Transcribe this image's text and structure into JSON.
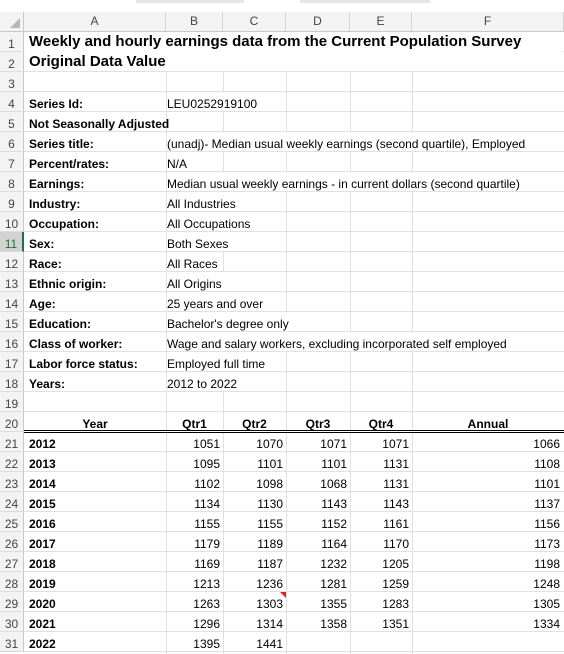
{
  "sheet": {
    "columns": [
      "A",
      "B",
      "C",
      "D",
      "E",
      "F"
    ],
    "selected_row": "11",
    "row_numbers": [
      "1",
      "2",
      "3",
      "4",
      "5",
      "6",
      "7",
      "8",
      "9",
      "10",
      "11",
      "12",
      "13",
      "14",
      "15",
      "16",
      "17",
      "18",
      "19",
      "20",
      "21",
      "22",
      "23",
      "24",
      "25",
      "26",
      "27",
      "28",
      "29",
      "30",
      "31"
    ],
    "title": "Weekly and hourly earnings data from the Current Population Survey",
    "subtitle": "Original Data Value",
    "metadata": [
      {
        "label": "Series Id:",
        "value": "LEU0252919100"
      },
      {
        "label": "Not Seasonally Adjusted",
        "value": ""
      },
      {
        "label": "Series title:",
        "value": "(unadj)- Median usual weekly earnings (second quartile), Employed"
      },
      {
        "label": "Percent/rates:",
        "value": "N/A"
      },
      {
        "label": "Earnings:",
        "value": "Median usual weekly earnings - in current dollars (second quartile)"
      },
      {
        "label": "Industry:",
        "value": "All Industries"
      },
      {
        "label": "Occupation:",
        "value": "All Occupations"
      },
      {
        "label": "Sex:",
        "value": "Both Sexes"
      },
      {
        "label": "Race:",
        "value": "All Races"
      },
      {
        "label": "Ethnic origin:",
        "value": "All Origins"
      },
      {
        "label": "Age:",
        "value": "25 years and over"
      },
      {
        "label": "Education:",
        "value": "Bachelor's degree only"
      },
      {
        "label": "Class of worker:",
        "value": "Wage and salary workers, excluding incorporated self employed"
      },
      {
        "label": "Labor force status:",
        "value": "Employed full time"
      },
      {
        "label": "Years:",
        "value": "2012 to 2022"
      }
    ],
    "table": {
      "headers": [
        "Year",
        "Qtr1",
        "Qtr2",
        "Qtr3",
        "Qtr4",
        "Annual"
      ],
      "rows": [
        [
          "2012",
          "1051",
          "1070",
          "1071",
          "1071",
          "1066"
        ],
        [
          "2013",
          "1095",
          "1101",
          "1101",
          "1131",
          "1108"
        ],
        [
          "2014",
          "1102",
          "1098",
          "1068",
          "1131",
          "1101"
        ],
        [
          "2015",
          "1134",
          "1130",
          "1143",
          "1143",
          "1137"
        ],
        [
          "2016",
          "1155",
          "1155",
          "1152",
          "1161",
          "1156"
        ],
        [
          "2017",
          "1179",
          "1189",
          "1164",
          "1170",
          "1173"
        ],
        [
          "2018",
          "1169",
          "1187",
          "1232",
          "1205",
          "1198"
        ],
        [
          "2019",
          "1213",
          "1236",
          "1281",
          "1259",
          "1248"
        ],
        [
          "2020",
          "1263",
          "1303",
          "1355",
          "1283",
          "1305"
        ],
        [
          "2021",
          "1296",
          "1314",
          "1358",
          "1351",
          "1334"
        ],
        [
          "2022",
          "1395",
          "1441",
          "",
          "",
          ""
        ]
      ]
    },
    "comment_flag_color": "#e02020",
    "selection_accent": "#1e7145"
  }
}
